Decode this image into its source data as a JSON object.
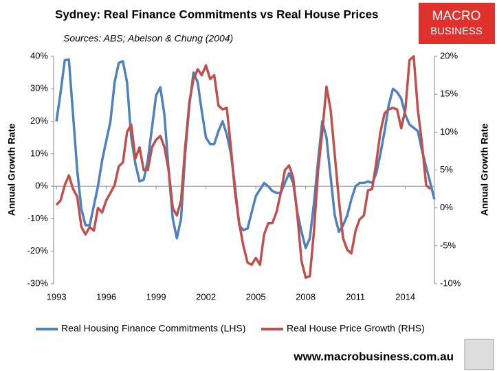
{
  "chart_data": {
    "type": "line",
    "title": "Sydney: Real Finance Commitments vs Real House Prices",
    "subtitle": "Sources: ABS; Abelson & Chung (2004)",
    "logo": [
      "MACRO",
      "BUSINESS"
    ],
    "footer": "www.macrobusiness.com.au",
    "y_label": "Annual Growth Rate",
    "y2_label": "Annual Growth Rate",
    "x": [
      1993,
      1993.25,
      1993.5,
      1993.75,
      1994,
      1994.25,
      1994.5,
      1994.75,
      1995,
      1995.25,
      1995.5,
      1995.75,
      1996,
      1996.25,
      1996.5,
      1996.75,
      1997,
      1997.25,
      1997.5,
      1997.75,
      1998,
      1998.25,
      1998.5,
      1998.75,
      1999,
      1999.25,
      1999.5,
      1999.75,
      2000,
      2000.25,
      2000.5,
      2000.75,
      2001,
      2001.25,
      2001.5,
      2001.75,
      2002,
      2002.25,
      2002.5,
      2002.75,
      2003,
      2003.25,
      2003.5,
      2003.75,
      2004,
      2004.25,
      2004.5,
      2004.75,
      2005,
      2005.25,
      2005.5,
      2005.75,
      2006,
      2006.25,
      2006.5,
      2006.75,
      2007,
      2007.25,
      2007.5,
      2007.75,
      2008,
      2008.25,
      2008.5,
      2008.75,
      2009,
      2009.25,
      2009.5,
      2009.75,
      2010,
      2010.25,
      2010.5,
      2010.75,
      2011,
      2011.25,
      2011.5,
      2011.75,
      2012,
      2012.25,
      2012.5,
      2012.75,
      2013,
      2013.25,
      2013.5,
      2013.75,
      2014,
      2014.25,
      2014.5,
      2014.75,
      2015,
      2015.25,
      2015.5,
      2015.75
    ],
    "series": [
      {
        "name": "Real Housing Finance Commitments (LHS)",
        "color": "#4f81bd",
        "axis": "y",
        "values": [
          20,
          29,
          38.8,
          39,
          22,
          5,
          -7,
          -12,
          -12,
          -6,
          0,
          8,
          14,
          20,
          32,
          38,
          38.5,
          32,
          15,
          7,
          1.5,
          2,
          8,
          18,
          28,
          30.5,
          22,
          5,
          -10,
          -16,
          -10,
          10,
          25,
          35,
          32,
          23,
          15,
          13,
          13,
          17,
          20,
          16,
          10,
          0,
          -12,
          -13.5,
          -13,
          -8,
          -3,
          -1,
          1,
          0,
          -1.5,
          -2,
          -2,
          1,
          4,
          1,
          -8,
          -14,
          -19,
          -16,
          -5,
          8,
          20,
          15,
          3,
          -9,
          -14,
          -12,
          -9,
          -4,
          0,
          1,
          1,
          1.5,
          1,
          4,
          10,
          17,
          25,
          30,
          29,
          27,
          22,
          19,
          18,
          17,
          11,
          6,
          1,
          -4
        ]
      },
      {
        "name": "Real House Price Growth (RHS)",
        "color": "#c0504d",
        "axis": "y2",
        "values": [
          0.4,
          1,
          3,
          4.3,
          2.5,
          1.5,
          -2.5,
          -3.5,
          -2.5,
          -3,
          0,
          -0.6,
          1,
          2,
          3,
          5.5,
          6,
          10,
          11,
          6.5,
          8,
          5,
          5,
          8,
          9,
          9.5,
          8,
          5,
          0,
          -1,
          1,
          8,
          14,
          17,
          18.3,
          17.5,
          18.8,
          17,
          17.5,
          13.5,
          13,
          13.2,
          8,
          2,
          -2,
          -5,
          -7.2,
          -7.5,
          -6.6,
          -7.5,
          -3.5,
          -2,
          -2,
          -0.5,
          2,
          5,
          5.6,
          4,
          -1,
          -7,
          -9.2,
          -9,
          -3,
          5,
          10,
          16,
          13,
          7,
          1,
          -4,
          -5.5,
          -6,
          -3,
          -1.5,
          -1,
          2.3,
          2.5,
          6,
          10,
          12.5,
          13,
          13.2,
          13,
          10.5,
          13,
          19.5,
          20,
          13,
          8.5,
          3,
          2.5,
          null
        ]
      }
    ],
    "xlim": [
      1992.83,
      2015.75
    ],
    "xticks": [
      1993,
      1996,
      1999,
      2002,
      2005,
      2008,
      2011,
      2014
    ],
    "ylim": [
      -30,
      40
    ],
    "yticks": [
      {
        "value": -30,
        "label": "-30%"
      },
      {
        "value": -20,
        "label": "-20%"
      },
      {
        "value": -10,
        "label": "-10%"
      },
      {
        "value": 0,
        "label": "0%"
      },
      {
        "value": 10,
        "label": "10%"
      },
      {
        "value": 20,
        "label": "20%"
      },
      {
        "value": 30,
        "label": "30%"
      },
      {
        "value": 40,
        "label": "40%"
      }
    ],
    "y2lim": [
      -10,
      20
    ],
    "y2ticks": [
      {
        "value": -10,
        "label": "-10%"
      },
      {
        "value": -5,
        "label": "-5%"
      },
      {
        "value": 0,
        "label": "0%"
      },
      {
        "value": 5,
        "label": "5%"
      },
      {
        "value": 10,
        "label": "10%"
      },
      {
        "value": 15,
        "label": "15%"
      },
      {
        "value": 20,
        "label": "20%"
      }
    ],
    "grid": false
  }
}
